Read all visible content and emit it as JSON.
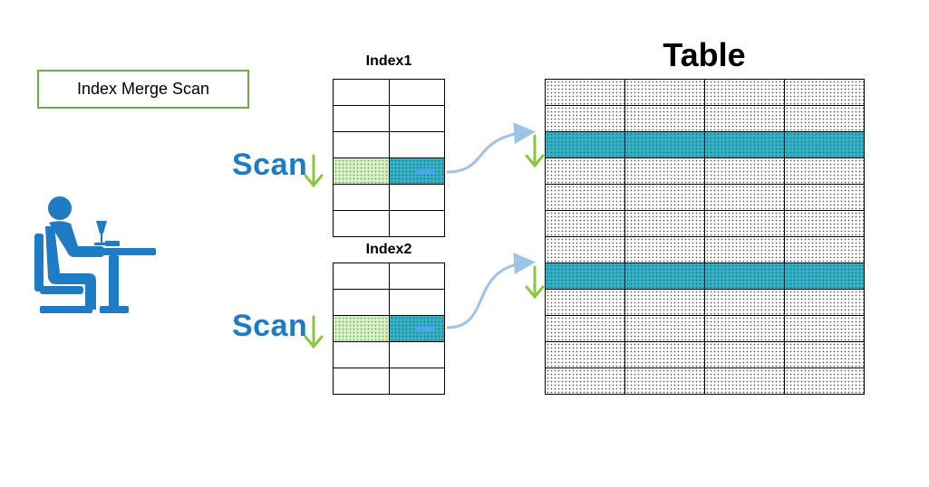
{
  "title_box": {
    "label": "Index Merge Scan"
  },
  "index1": {
    "label": "Index1"
  },
  "index2": {
    "label": "Index2"
  },
  "table": {
    "label": "Table"
  },
  "scan": {
    "label1": "Scan",
    "label2": "Scan"
  },
  "colors": {
    "accent_blue": "#1f7bc4",
    "highlight_teal": "#33b2c6",
    "highlight_green": "#d8efc8",
    "arrow_green": "#8cc63f",
    "curve_blue": "#9dc3e6",
    "box_border": "#70ad47"
  },
  "icons": [
    "person-at-desk-icon",
    "scan-arrow-icon",
    "pointer-curve-icon"
  ]
}
